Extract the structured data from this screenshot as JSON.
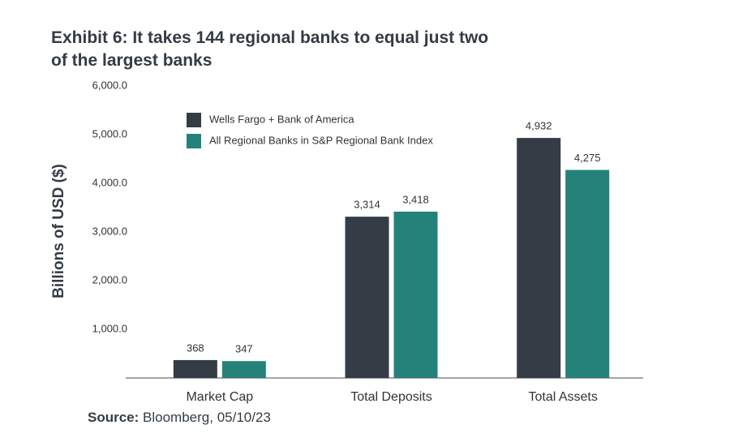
{
  "chart_data": {
    "type": "bar",
    "title": "Exhibit 6: It takes 144 regional banks to equal just two of the largest banks",
    "y_label": "Billions of USD ($)",
    "categories": [
      "Market Cap",
      "Total Deposits",
      "Total Assets"
    ],
    "series": [
      {
        "name": "Wells Fargo + Bank of America",
        "color": "#343c46",
        "values": [
          368,
          3314,
          4932
        ],
        "value_labels": [
          "368",
          "3,314",
          "4,932"
        ]
      },
      {
        "name": "All Regional Banks in S&P Regional Bank Index",
        "color": "#25827a",
        "values": [
          347,
          3418,
          4275
        ],
        "value_labels": [
          "347",
          "3,418",
          "4,275"
        ]
      }
    ],
    "ylim": [
      0,
      6000
    ],
    "yticks": [
      {
        "value": 1000,
        "label": "1,000.0"
      },
      {
        "value": 2000,
        "label": "2,000.0"
      },
      {
        "value": 3000,
        "label": "3,000.0"
      },
      {
        "value": 4000,
        "label": "4,000.0"
      },
      {
        "value": 5000,
        "label": "5,000.0"
      },
      {
        "value": 6000,
        "label": "6,000.0"
      }
    ],
    "legend": "upper left",
    "grid": false,
    "source_label": "Source:",
    "source": "Bloomberg, 05/10/23"
  }
}
